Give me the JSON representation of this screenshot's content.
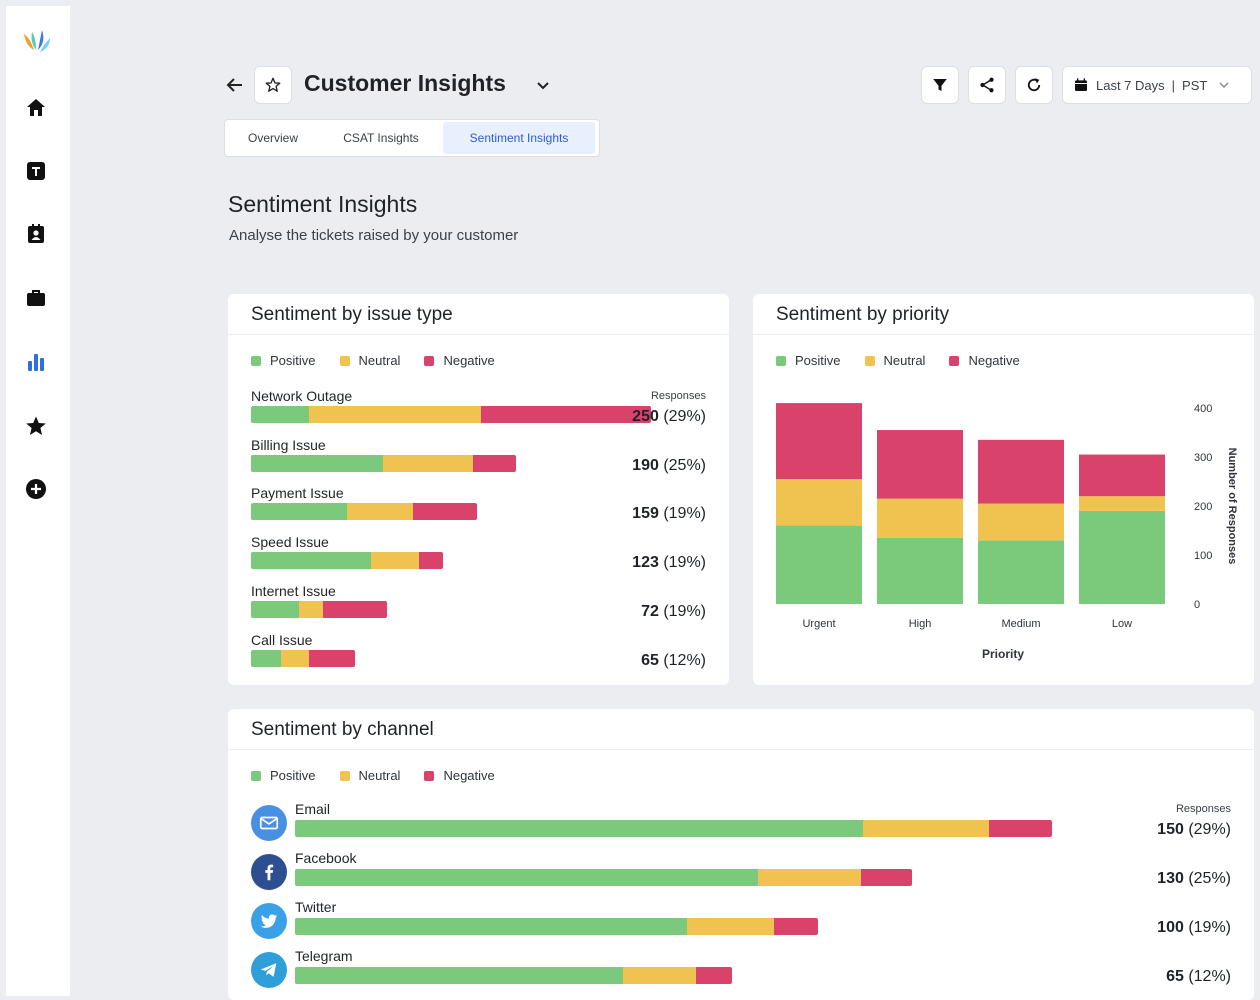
{
  "header": {
    "title": "Customer Insights",
    "date_range": "Last 7 Days",
    "separator": "|",
    "timezone": "PST"
  },
  "tabs": [
    {
      "label": "Overview"
    },
    {
      "label": "CSAT Insights"
    },
    {
      "label": "Sentiment Insights"
    }
  ],
  "section": {
    "title": "Sentiment Insights",
    "subtitle": "Analyse the tickets raised by your customer"
  },
  "colors": {
    "positive": "#7bc97b",
    "neutral": "#f0c24f",
    "negative": "#d9426b",
    "accent": "#2d5bd7"
  },
  "legend": {
    "positive": "Positive",
    "neutral": "Neutral",
    "negative": "Negative"
  },
  "issue_card": {
    "title": "Sentiment by issue type",
    "responses_label": "Responses",
    "rows": [
      {
        "label": "Network Outage",
        "count": "250",
        "pct": "(29%)",
        "positive": 58,
        "neutral": 172,
        "negative": 170
      },
      {
        "label": "Billing Issue",
        "count": "190",
        "pct": "(25%)",
        "positive": 132,
        "neutral": 90,
        "negative": 43
      },
      {
        "label": "Payment Issue",
        "count": "159",
        "pct": "(19%)",
        "positive": 96,
        "neutral": 66,
        "negative": 64
      },
      {
        "label": "Speed Issue",
        "count": "123",
        "pct": "(19%)",
        "positive": 120,
        "neutral": 48,
        "negative": 24
      },
      {
        "label": "Internet Issue",
        "count": "72",
        "pct": "(19%)",
        "positive": 48,
        "neutral": 24,
        "negative": 64
      },
      {
        "label": "Call Issue",
        "count": "65",
        "pct": "(12%)",
        "positive": 30,
        "neutral": 28,
        "negative": 46
      }
    ]
  },
  "chart_data": {
    "type": "bar",
    "stacked": true,
    "title": "Sentiment by priority",
    "categories": [
      "Urgent",
      "High",
      "Medium",
      "Low"
    ],
    "series": [
      {
        "name": "Positive",
        "values": [
          160,
          135,
          130,
          190
        ]
      },
      {
        "name": "Neutral",
        "values": [
          95,
          80,
          75,
          30
        ]
      },
      {
        "name": "Negative",
        "values": [
          155,
          140,
          130,
          85
        ]
      }
    ],
    "xlabel": "Priority",
    "ylabel": "Number of Responses",
    "yticks": [
      "400",
      "300",
      "200",
      "100",
      "0"
    ],
    "ylim": [
      0,
      400
    ],
    "yaxis_side": "right"
  },
  "channel_card": {
    "title": "Sentiment by channel",
    "responses_label": "Responses",
    "rows": [
      {
        "label": "Email",
        "icon": "email-icon",
        "icon_color": "#4a90e2",
        "count": "150",
        "pct": "(29%)",
        "positive": 568,
        "neutral": 126,
        "negative": 63
      },
      {
        "label": "Facebook",
        "icon": "facebook-icon",
        "icon_color": "#2d4e8f",
        "count": "130",
        "pct": "(25%)",
        "positive": 463,
        "neutral": 103,
        "negative": 51
      },
      {
        "label": "Twitter",
        "icon": "twitter-icon",
        "icon_color": "#3aa0e8",
        "count": "100",
        "pct": "(19%)",
        "positive": 392,
        "neutral": 87,
        "negative": 44
      },
      {
        "label": "Telegram",
        "icon": "telegram-icon",
        "icon_color": "#2e9fd8",
        "count": "65",
        "pct": "(12%)",
        "positive": 328,
        "neutral": 73,
        "negative": 36
      }
    ]
  }
}
